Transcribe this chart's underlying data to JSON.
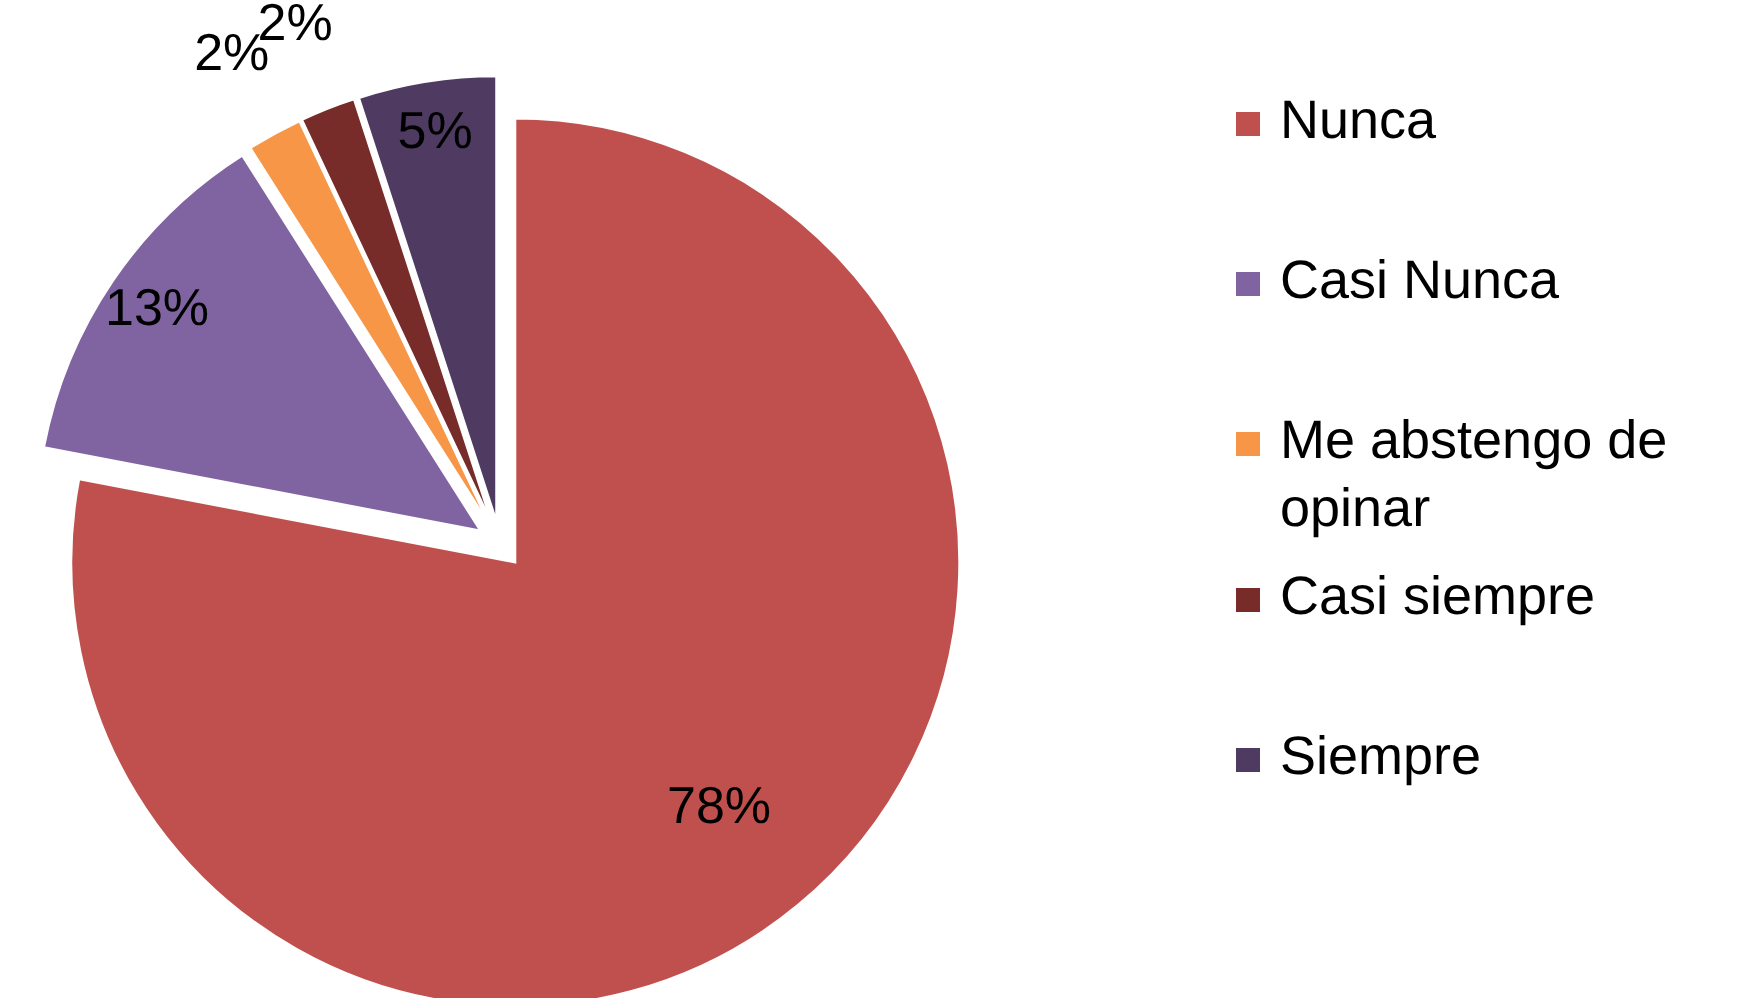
{
  "chart_data": {
    "type": "pie",
    "categories": [
      "Nunca",
      "Casi Nunca",
      "Me abstengo de opinar",
      "Casi siempre",
      "Siempre"
    ],
    "values": [
      78,
      13,
      2,
      2,
      5
    ],
    "colors": [
      "#c0504d",
      "#8064a2",
      "#f79646",
      "#772c2a",
      "#4f3b62"
    ],
    "value_labels": [
      "78%",
      "13%",
      "2%",
      "2%",
      "5%"
    ],
    "legend": "right"
  }
}
